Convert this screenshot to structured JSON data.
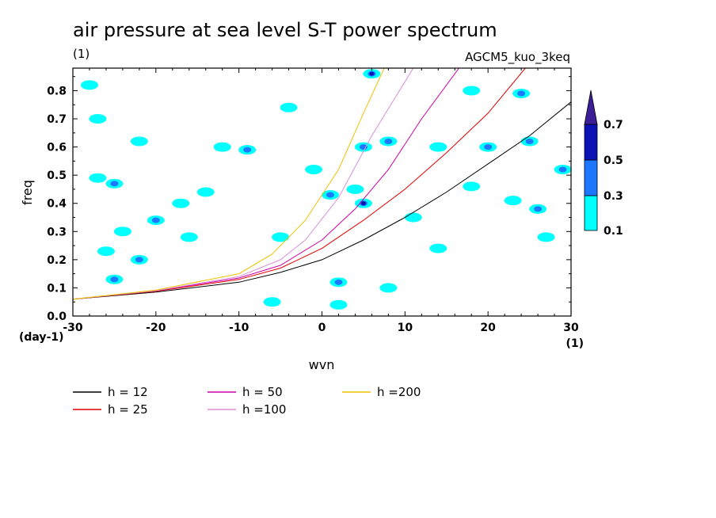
{
  "chart_data": {
    "type": "contour",
    "title": "air pressure at sea level S-T power spectrum",
    "subtitle_left": "(1)",
    "subtitle_right": "AGCM5_kuo_3keq",
    "xlabel": "wvn",
    "ylabel": "freq",
    "x_unit": "(1)",
    "y_unit": "(day-1)",
    "xlim": [
      -30,
      30
    ],
    "ylim": [
      0,
      0.88
    ],
    "x_ticks": [
      -30,
      -20,
      -10,
      0,
      10,
      20,
      30
    ],
    "y_ticks": [
      0.0,
      0.1,
      0.2,
      0.3,
      0.4,
      0.5,
      0.6,
      0.7,
      0.8
    ],
    "y_tick_labels": [
      "0.0",
      "0.1",
      "0.2",
      "0.3",
      "0.4",
      "0.5",
      "0.6",
      "0.7",
      "0.8"
    ],
    "x_tick_labels": [
      "-30",
      "-20",
      "-10",
      "0",
      "10",
      "20",
      "30"
    ],
    "colorbar": {
      "levels": [
        "0.1",
        "0.3",
        "0.5",
        "0.7"
      ],
      "colors": [
        "#00ffff",
        "#1e78ff",
        "#0a14b4",
        "#3c1e96"
      ]
    },
    "series": [
      {
        "name": "h = 12",
        "color": "#000000",
        "x": [
          -30,
          -20,
          -10,
          -5,
          0,
          5,
          10,
          15,
          20,
          25,
          30
        ],
        "y": [
          0.06,
          0.085,
          0.12,
          0.155,
          0.2,
          0.27,
          0.35,
          0.44,
          0.54,
          0.64,
          0.76
        ]
      },
      {
        "name": "h = 25",
        "color": "#e00000",
        "x": [
          -30,
          -20,
          -10,
          -5,
          0,
          5,
          10,
          15,
          20,
          24.5
        ],
        "y": [
          0.06,
          0.088,
          0.13,
          0.17,
          0.24,
          0.34,
          0.45,
          0.58,
          0.72,
          0.88
        ]
      },
      {
        "name": "h = 50",
        "color": "#cc00aa",
        "x": [
          -30,
          -20,
          -10,
          -5,
          0,
          4,
          8,
          12,
          16.5
        ],
        "y": [
          0.06,
          0.09,
          0.135,
          0.18,
          0.27,
          0.38,
          0.52,
          0.7,
          0.88
        ]
      },
      {
        "name": "h =100",
        "color": "#d890d8",
        "x": [
          -30,
          -20,
          -10,
          -5,
          -2,
          2,
          6,
          11
        ],
        "y": [
          0.06,
          0.09,
          0.14,
          0.2,
          0.27,
          0.42,
          0.64,
          0.88
        ]
      },
      {
        "name": "h =200",
        "color": "#f0c000",
        "x": [
          -30,
          -20,
          -10,
          -6,
          -2,
          2,
          5,
          7.5
        ],
        "y": [
          0.06,
          0.092,
          0.15,
          0.22,
          0.34,
          0.52,
          0.72,
          0.88
        ]
      }
    ],
    "blobs": [
      {
        "x": -28,
        "y": 0.82,
        "level": 0
      },
      {
        "x": -27,
        "y": 0.7,
        "level": 0
      },
      {
        "x": -25,
        "y": 0.47,
        "level": 1
      },
      {
        "x": -27,
        "y": 0.49,
        "level": 0
      },
      {
        "x": -22,
        "y": 0.62,
        "level": 0
      },
      {
        "x": -20,
        "y": 0.34,
        "level": 1
      },
      {
        "x": -17,
        "y": 0.4,
        "level": 0
      },
      {
        "x": -16,
        "y": 0.28,
        "level": 0
      },
      {
        "x": -25,
        "y": 0.13,
        "level": 1
      },
      {
        "x": -22,
        "y": 0.2,
        "level": 1
      },
      {
        "x": -24,
        "y": 0.3,
        "level": 0
      },
      {
        "x": -14,
        "y": 0.44,
        "level": 0
      },
      {
        "x": -12,
        "y": 0.6,
        "level": 0
      },
      {
        "x": -9,
        "y": 0.59,
        "level": 1
      },
      {
        "x": -4,
        "y": 0.74,
        "level": 0
      },
      {
        "x": -1,
        "y": 0.52,
        "level": 0
      },
      {
        "x": 1,
        "y": 0.43,
        "level": 1
      },
      {
        "x": 4,
        "y": 0.45,
        "level": 0
      },
      {
        "x": 5,
        "y": 0.4,
        "level": 2
      },
      {
        "x": 5,
        "y": 0.6,
        "level": 1
      },
      {
        "x": 6,
        "y": 0.86,
        "level": 2
      },
      {
        "x": 8,
        "y": 0.62,
        "level": 1
      },
      {
        "x": 11,
        "y": 0.35,
        "level": 0
      },
      {
        "x": 14,
        "y": 0.6,
        "level": 0
      },
      {
        "x": 18,
        "y": 0.46,
        "level": 0
      },
      {
        "x": 20,
        "y": 0.6,
        "level": 1
      },
      {
        "x": 23,
        "y": 0.41,
        "level": 0
      },
      {
        "x": 26,
        "y": 0.38,
        "level": 1
      },
      {
        "x": 27,
        "y": 0.28,
        "level": 0
      },
      {
        "x": 29,
        "y": 0.52,
        "level": 1
      },
      {
        "x": 24,
        "y": 0.79,
        "level": 1
      },
      {
        "x": 2,
        "y": 0.12,
        "level": 1
      },
      {
        "x": 2,
        "y": 0.04,
        "level": 0
      },
      {
        "x": -5,
        "y": 0.28,
        "level": 0
      },
      {
        "x": 14,
        "y": 0.24,
        "level": 0
      },
      {
        "x": 25,
        "y": 0.62,
        "level": 1
      },
      {
        "x": -26,
        "y": 0.23,
        "level": 0
      },
      {
        "x": 18,
        "y": 0.8,
        "level": 0
      },
      {
        "x": -6,
        "y": 0.05,
        "level": 0
      },
      {
        "x": 8,
        "y": 0.1,
        "level": 0
      }
    ]
  }
}
